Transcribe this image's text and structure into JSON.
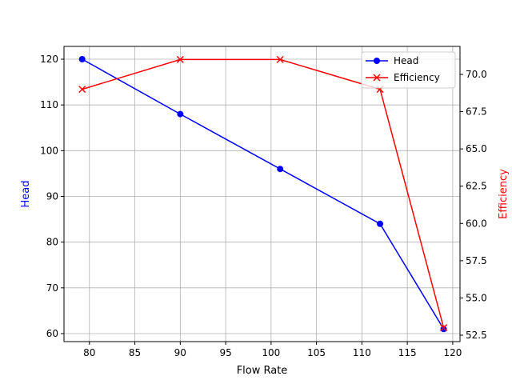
{
  "chart_data": {
    "type": "line",
    "xlabel": "Flow Rate",
    "ylabel_left": "Head",
    "ylabel_right": "Efficiency",
    "xlim": [
      77.2,
      120.8
    ],
    "ylim_left": [
      58.25,
      122.8
    ],
    "ylim_right": [
      52.07,
      71.88
    ],
    "x_ticks": [
      80,
      85,
      90,
      95,
      100,
      105,
      110,
      115,
      120
    ],
    "y_left_ticks": [
      60,
      70,
      80,
      90,
      100,
      110,
      120
    ],
    "y_right_ticks": [
      "52.5",
      "55.0",
      "57.5",
      "60.0",
      "62.5",
      "65.0",
      "67.5",
      "70.0"
    ],
    "grid": true,
    "legend_position": "top-right",
    "series": [
      {
        "name": "Head",
        "axis": "left",
        "color": "#0000ff",
        "marker": "circle",
        "x": [
          79.2,
          90,
          101,
          112,
          119
        ],
        "y": [
          120,
          108,
          96,
          84,
          61
        ]
      },
      {
        "name": "Efficiency",
        "axis": "right",
        "color": "#ff0000",
        "marker": "x",
        "x": [
          79.2,
          90,
          101,
          112,
          119
        ],
        "y": [
          69,
          71,
          71,
          69,
          53
        ]
      }
    ]
  }
}
